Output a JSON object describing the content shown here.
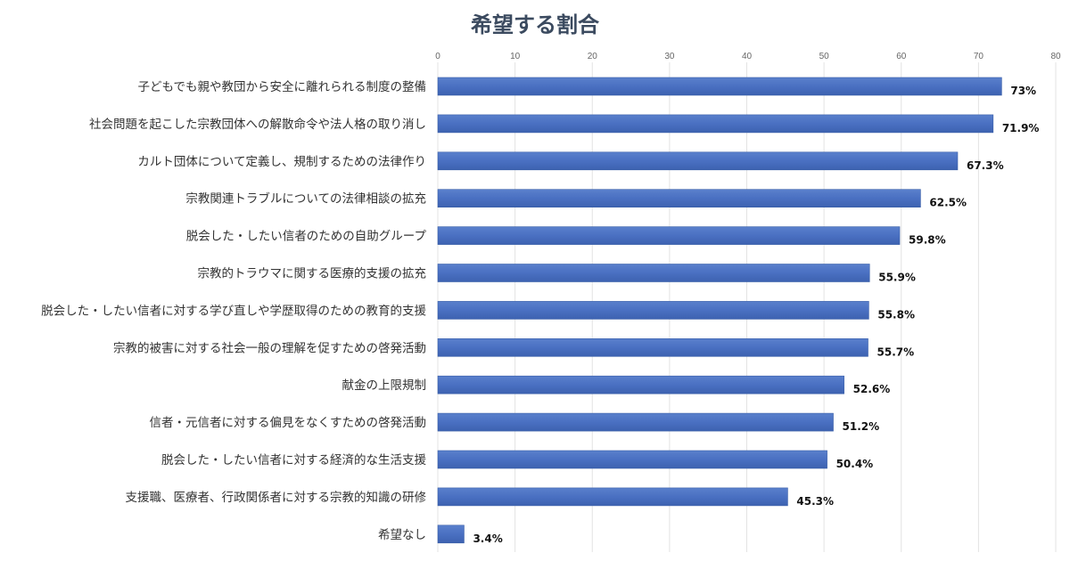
{
  "chart_data": {
    "type": "bar",
    "orientation": "horizontal",
    "title": "希望する割合",
    "xlabel": "",
    "ylabel": "",
    "xlim": [
      0,
      80
    ],
    "xticks": [
      "0",
      "10",
      "20",
      "30",
      "40",
      "50",
      "60",
      "70",
      "80"
    ],
    "grid": true,
    "bar_color": "#4a72c4",
    "categories": [
      "子どもでも親や教団から安全に離れられる制度の整備",
      "社会問題を起こした宗教団体への解散命令や法人格の取り消し",
      "カルト団体について定義し、規制するための法律作り",
      "宗教関連トラブルについての法律相談の拡充",
      "脱会した・したい信者のための自助グループ",
      "宗教的トラウマに関する医療的支援の拡充",
      "脱会した・したい信者に対する学び直しや学歴取得のための教育的支援",
      "宗教的被害に対する社会一般の理解を促すための啓発活動",
      "献金の上限規制",
      "信者・元信者に対する偏見をなくすための啓発活動",
      "脱会した・したい信者に対する経済的な生活支援",
      "支援職、医療者、行政関係者に対する宗教的知識の研修",
      "希望なし"
    ],
    "values": [
      73,
      71.9,
      67.3,
      62.5,
      59.8,
      55.9,
      55.8,
      55.7,
      52.6,
      51.2,
      50.4,
      45.3,
      3.4
    ],
    "data_labels": [
      "73%",
      "71.9%",
      "67.3%",
      "62.5%",
      "59.8%",
      "55.9%",
      "55.8%",
      "55.7%",
      "52.6%",
      "51.2%",
      "50.4%",
      "45.3%",
      "3.4%"
    ]
  }
}
